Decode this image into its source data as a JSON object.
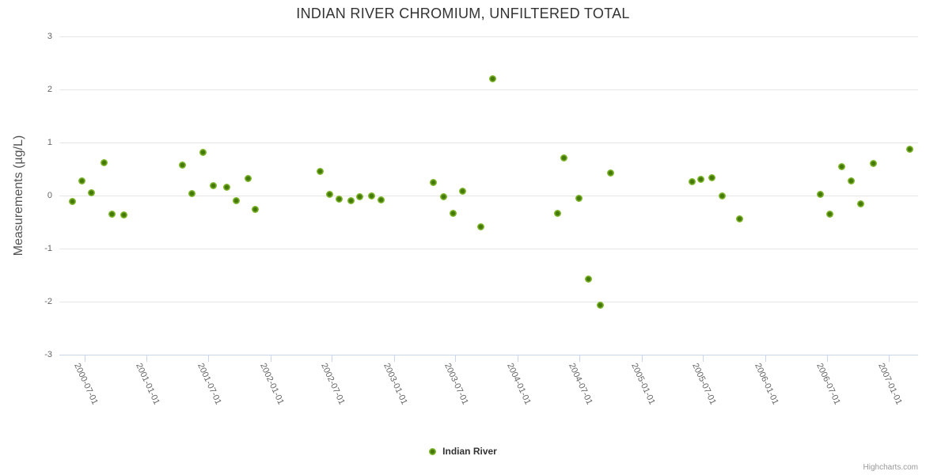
{
  "title": "INDIAN RIVER CHROMIUM, UNFILTERED TOTAL",
  "legend": {
    "label": "Indian River"
  },
  "credits": "Highcharts.com",
  "colors": {
    "marker_core": "#44790a",
    "marker_mid": "#7cb42a",
    "marker_outer": "#8ac13a",
    "grid_line": "#e6e6e6",
    "axis_line": "#ccd6eb",
    "title_text": "#333333",
    "axis_label_text": "#666666",
    "axis_title_text": "#555555",
    "credits_text": "#999999"
  },
  "chart_data": {
    "type": "scatter",
    "title": "INDIAN RIVER CHROMIUM, UNFILTERED TOTAL",
    "xlabel": "",
    "ylabel": "Measurements (µg/L)",
    "ylim": [
      -3,
      3
    ],
    "y_ticks": [
      3,
      2,
      1,
      0,
      -1,
      -2,
      -3
    ],
    "x_ticks": [
      "2000-07-01",
      "2001-01-01",
      "2001-07-01",
      "2002-01-01",
      "2002-07-01",
      "2003-01-01",
      "2003-07-01",
      "2004-01-01",
      "2004-07-01",
      "2005-01-01",
      "2005-07-01",
      "2006-01-01",
      "2006-07-01",
      "2007-01-01"
    ],
    "grid": true,
    "legend_position": "bottom-center",
    "series": [
      {
        "name": "Indian River",
        "points": [
          {
            "date": "2000-05-27",
            "value": -0.11
          },
          {
            "date": "2000-06-23",
            "value": 0.27
          },
          {
            "date": "2000-07-21",
            "value": 0.05
          },
          {
            "date": "2000-08-27",
            "value": 0.62
          },
          {
            "date": "2000-09-21",
            "value": -0.35
          },
          {
            "date": "2000-10-26",
            "value": -0.36
          },
          {
            "date": "2001-04-16",
            "value": 0.58
          },
          {
            "date": "2001-05-15",
            "value": 0.03
          },
          {
            "date": "2001-06-15",
            "value": 0.82
          },
          {
            "date": "2001-07-16",
            "value": 0.19
          },
          {
            "date": "2001-08-25",
            "value": 0.15
          },
          {
            "date": "2001-09-22",
            "value": -0.1
          },
          {
            "date": "2001-10-28",
            "value": 0.32
          },
          {
            "date": "2001-11-17",
            "value": -0.26
          },
          {
            "date": "2002-05-28",
            "value": 0.46
          },
          {
            "date": "2002-06-25",
            "value": 0.02
          },
          {
            "date": "2002-07-22",
            "value": -0.06
          },
          {
            "date": "2002-08-26",
            "value": -0.09
          },
          {
            "date": "2002-09-21",
            "value": -0.02
          },
          {
            "date": "2002-10-27",
            "value": -0.01
          },
          {
            "date": "2002-11-24",
            "value": -0.08
          },
          {
            "date": "2003-04-28",
            "value": 0.25
          },
          {
            "date": "2003-05-28",
            "value": -0.02
          },
          {
            "date": "2003-06-25",
            "value": -0.33
          },
          {
            "date": "2003-07-22",
            "value": 0.08
          },
          {
            "date": "2003-09-13",
            "value": -0.59
          },
          {
            "date": "2003-10-19",
            "value": 2.2
          },
          {
            "date": "2004-04-27",
            "value": -0.33
          },
          {
            "date": "2004-05-17",
            "value": 0.71
          },
          {
            "date": "2004-06-29",
            "value": -0.05
          },
          {
            "date": "2004-07-28",
            "value": -1.58
          },
          {
            "date": "2004-09-01",
            "value": -2.06
          },
          {
            "date": "2004-10-01",
            "value": 0.42
          },
          {
            "date": "2005-05-30",
            "value": 0.26
          },
          {
            "date": "2005-06-24",
            "value": 0.3
          },
          {
            "date": "2005-07-26",
            "value": 0.33
          },
          {
            "date": "2005-08-27",
            "value": 0.0
          },
          {
            "date": "2005-10-18",
            "value": -0.44
          },
          {
            "date": "2006-06-13",
            "value": 0.02
          },
          {
            "date": "2006-07-10",
            "value": -0.35
          },
          {
            "date": "2006-08-14",
            "value": 0.55
          },
          {
            "date": "2006-09-12",
            "value": 0.28
          },
          {
            "date": "2006-10-09",
            "value": -0.15
          },
          {
            "date": "2006-11-15",
            "value": 0.6
          },
          {
            "date": "2007-03-04",
            "value": 0.88
          }
        ]
      }
    ]
  }
}
